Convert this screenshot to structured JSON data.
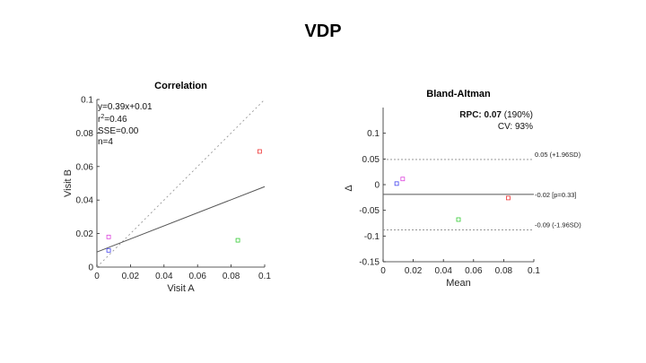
{
  "slide": {
    "title": "VDP"
  },
  "chart_data": [
    {
      "type": "scatter",
      "title": "Correlation",
      "xlabel": "Visit A",
      "ylabel": "Visit B",
      "xlim": [
        0,
        0.1
      ],
      "ylim": [
        0,
        0.1
      ],
      "x_ticks": [
        "0",
        "0.02",
        "0.04",
        "0.06",
        "0.08",
        "0.1"
      ],
      "y_ticks": [
        "0",
        "0.02",
        "0.04",
        "0.06",
        "0.08",
        "0.1"
      ],
      "annotation": {
        "equation": "y=0.39x+0.01",
        "r2_label": "r",
        "r2_exp": "2",
        "r2_value": "=0.46",
        "sse": "SSE=0.00",
        "n": "n=4"
      },
      "fit_line": {
        "slope": 0.39,
        "intercept": 0.009
      },
      "identity_line": true,
      "points": [
        {
          "x": 0.007,
          "y": 0.018,
          "color": "#dd44dd"
        },
        {
          "x": 0.007,
          "y": 0.01,
          "color": "#4444ee"
        },
        {
          "x": 0.084,
          "y": 0.016,
          "color": "#33cc33"
        },
        {
          "x": 0.097,
          "y": 0.069,
          "color": "#ee3333"
        }
      ]
    },
    {
      "type": "scatter",
      "title": "Bland-Altman",
      "xlabel": "Mean",
      "ylabel": "Δ",
      "xlim": [
        0,
        0.1
      ],
      "ylim": [
        -0.15,
        0.15
      ],
      "x_ticks": [
        "0",
        "0.02",
        "0.04",
        "0.06",
        "0.08",
        "0.1"
      ],
      "y_ticks": [
        "-0.15",
        "-0.1",
        "-0.05",
        "0",
        "0.05",
        "0.1"
      ],
      "rpc_label": "RPC: 0.07",
      "rpc_pct": " (190%)",
      "cv": "CV: 93%",
      "mean_line": {
        "y": -0.019,
        "label": "-0.02 [p=0.33]"
      },
      "upper_loa": {
        "y": 0.049,
        "label": "0.05 (+1.96SD)"
      },
      "lower_loa": {
        "y": -0.088,
        "label": "-0.09 (-1.96SD)"
      },
      "points": [
        {
          "x": 0.013,
          "y": 0.011,
          "color": "#dd44dd"
        },
        {
          "x": 0.009,
          "y": 0.002,
          "color": "#4444ee"
        },
        {
          "x": 0.05,
          "y": -0.068,
          "color": "#33cc33"
        },
        {
          "x": 0.083,
          "y": -0.026,
          "color": "#ee3333"
        }
      ]
    }
  ]
}
